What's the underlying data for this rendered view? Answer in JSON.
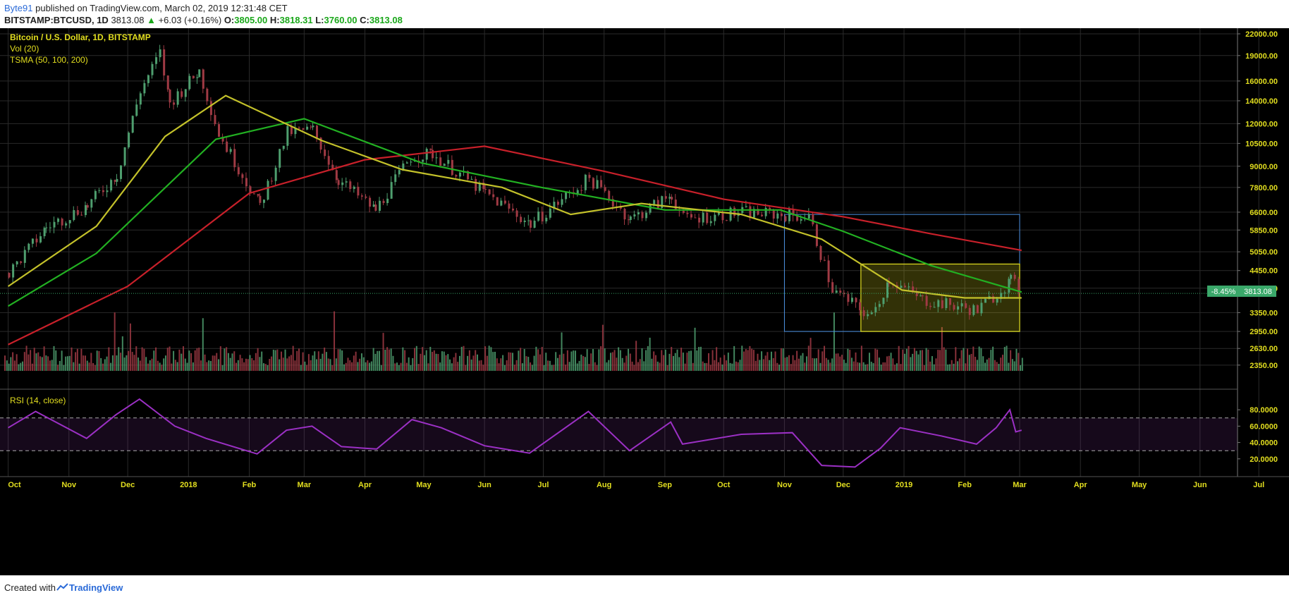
{
  "header": {
    "author": "Byte91",
    "published_text": "published on TradingView.com, March 02, 2019 12:31:48 CET",
    "symbol": "BITSTAMP:BTCUSD, 1D",
    "last": "3813.08",
    "change": "+6.03 (+0.16%)",
    "o_label": "O:",
    "o_val": "3805.00",
    "h_label": "H:",
    "h_val": "3818.31",
    "l_label": "L:",
    "l_val": "3760.00",
    "c_label": "C:",
    "c_val": "3813.08"
  },
  "legend": {
    "title": "Bitcoin / U.S. Dollar, 1D, BITSTAMP",
    "vol": "Vol (20)",
    "tsma": "TSMA (50, 100, 200)",
    "rsi": "RSI (14, close)"
  },
  "price_badge": {
    "pct": "-8.45%",
    "price": "3813.08"
  },
  "footer": {
    "created": "Created with",
    "brand": "TradingView"
  },
  "colors": {
    "bg": "#000000",
    "up": "#4e9e6e",
    "down": "#a03a44",
    "sma50": "#c3c12a",
    "sma100": "#22b022",
    "sma200": "#c8202a",
    "rsi": "#9b30c4",
    "box_blue": "#4a90e2",
    "box_yellow": "#e3df1f"
  },
  "chart_data": {
    "type": "line",
    "x_axis_labels": [
      "Oct",
      "Nov",
      "Dec",
      "2018",
      "Feb",
      "Mar",
      "Apr",
      "May",
      "Jun",
      "Jul",
      "Aug",
      "Sep",
      "Oct",
      "Nov",
      "Dec",
      "2019",
      "Feb",
      "Mar",
      "Apr",
      "May",
      "Jun",
      "Jul"
    ],
    "y_axis_labels": [
      "22000.00",
      "19000.00",
      "16000.00",
      "14000.00",
      "12000.00",
      "10500.00",
      "9000.00",
      "7800.00",
      "6600.00",
      "5850.00",
      "5050.00",
      "4450.00",
      "3950.00",
      "3350.00",
      "2950.00",
      "2630.00",
      "2350.00"
    ],
    "y_scale": "log",
    "price_close": [
      {
        "d": "2017-10-01",
        "v": 4380
      },
      {
        "d": "2017-10-20",
        "v": 5950
      },
      {
        "d": "2017-11-10",
        "v": 6900
      },
      {
        "d": "2017-11-25",
        "v": 8500
      },
      {
        "d": "2017-12-07",
        "v": 15000
      },
      {
        "d": "2017-12-17",
        "v": 19300
      },
      {
        "d": "2017-12-22",
        "v": 13800
      },
      {
        "d": "2018-01-06",
        "v": 17100
      },
      {
        "d": "2018-01-16",
        "v": 11200
      },
      {
        "d": "2018-02-06",
        "v": 6900
      },
      {
        "d": "2018-02-20",
        "v": 11300
      },
      {
        "d": "2018-03-05",
        "v": 11500
      },
      {
        "d": "2018-03-18",
        "v": 8200
      },
      {
        "d": "2018-04-06",
        "v": 6700
      },
      {
        "d": "2018-04-24",
        "v": 9600
      },
      {
        "d": "2018-05-05",
        "v": 9800
      },
      {
        "d": "2018-06-01",
        "v": 7500
      },
      {
        "d": "2018-06-24",
        "v": 6100
      },
      {
        "d": "2018-07-24",
        "v": 8300
      },
      {
        "d": "2018-08-14",
        "v": 6300
      },
      {
        "d": "2018-09-04",
        "v": 7400
      },
      {
        "d": "2018-09-10",
        "v": 6300
      },
      {
        "d": "2018-10-10",
        "v": 6600
      },
      {
        "d": "2018-11-13",
        "v": 6400
      },
      {
        "d": "2018-11-25",
        "v": 3900
      },
      {
        "d": "2018-12-15",
        "v": 3250
      },
      {
        "d": "2018-12-24",
        "v": 4200
      },
      {
        "d": "2019-01-10",
        "v": 3650
      },
      {
        "d": "2019-02-07",
        "v": 3400
      },
      {
        "d": "2019-02-24",
        "v": 4150
      },
      {
        "d": "2019-03-02",
        "v": 3813
      }
    ],
    "sma50": [
      {
        "d": "2017-10-01",
        "v": 4000
      },
      {
        "d": "2017-11-15",
        "v": 6000
      },
      {
        "d": "2017-12-20",
        "v": 11000
      },
      {
        "d": "2018-01-20",
        "v": 14500
      },
      {
        "d": "2018-03-10",
        "v": 10700
      },
      {
        "d": "2018-04-20",
        "v": 8800
      },
      {
        "d": "2018-06-10",
        "v": 7800
      },
      {
        "d": "2018-07-15",
        "v": 6500
      },
      {
        "d": "2018-08-20",
        "v": 7000
      },
      {
        "d": "2018-10-10",
        "v": 6500
      },
      {
        "d": "2018-11-20",
        "v": 5500
      },
      {
        "d": "2018-12-31",
        "v": 3900
      },
      {
        "d": "2019-02-01",
        "v": 3700
      },
      {
        "d": "2019-03-02",
        "v": 3700
      }
    ],
    "sma100": [
      {
        "d": "2017-10-01",
        "v": 3500
      },
      {
        "d": "2017-11-15",
        "v": 5000
      },
      {
        "d": "2018-01-15",
        "v": 10800
      },
      {
        "d": "2018-03-01",
        "v": 12400
      },
      {
        "d": "2018-04-30",
        "v": 9200
      },
      {
        "d": "2018-06-30",
        "v": 7800
      },
      {
        "d": "2018-09-01",
        "v": 6700
      },
      {
        "d": "2018-10-30",
        "v": 6700
      },
      {
        "d": "2018-12-01",
        "v": 5800
      },
      {
        "d": "2019-01-15",
        "v": 4600
      },
      {
        "d": "2019-03-02",
        "v": 3850
      }
    ],
    "sma200": [
      {
        "d": "2017-10-01",
        "v": 2700
      },
      {
        "d": "2017-12-01",
        "v": 4000
      },
      {
        "d": "2018-02-01",
        "v": 7500
      },
      {
        "d": "2018-04-01",
        "v": 9400
      },
      {
        "d": "2018-06-01",
        "v": 10300
      },
      {
        "d": "2018-08-01",
        "v": 8700
      },
      {
        "d": "2018-10-01",
        "v": 7200
      },
      {
        "d": "2018-12-01",
        "v": 6400
      },
      {
        "d": "2019-01-15",
        "v": 5700
      },
      {
        "d": "2019-03-02",
        "v": 5100
      }
    ],
    "rsi": {
      "levels": [
        "80.0000",
        "60.0000",
        "40.0000",
        "20.0000"
      ],
      "bands": [
        30,
        70
      ],
      "points": [
        {
          "d": "2017-10-01",
          "v": 58
        },
        {
          "d": "2017-10-15",
          "v": 78
        },
        {
          "d": "2017-11-10",
          "v": 45
        },
        {
          "d": "2017-11-25",
          "v": 74
        },
        {
          "d": "2017-12-07",
          "v": 93
        },
        {
          "d": "2017-12-25",
          "v": 60
        },
        {
          "d": "2018-01-10",
          "v": 45
        },
        {
          "d": "2018-02-05",
          "v": 26
        },
        {
          "d": "2018-02-20",
          "v": 55
        },
        {
          "d": "2018-03-05",
          "v": 60
        },
        {
          "d": "2018-03-20",
          "v": 35
        },
        {
          "d": "2018-04-07",
          "v": 32
        },
        {
          "d": "2018-04-25",
          "v": 68
        },
        {
          "d": "2018-05-10",
          "v": 58
        },
        {
          "d": "2018-06-01",
          "v": 36
        },
        {
          "d": "2018-06-24",
          "v": 27
        },
        {
          "d": "2018-07-24",
          "v": 78
        },
        {
          "d": "2018-08-14",
          "v": 30
        },
        {
          "d": "2018-09-04",
          "v": 65
        },
        {
          "d": "2018-09-10",
          "v": 38
        },
        {
          "d": "2018-10-10",
          "v": 50
        },
        {
          "d": "2018-11-05",
          "v": 52
        },
        {
          "d": "2018-11-20",
          "v": 12
        },
        {
          "d": "2018-12-07",
          "v": 10
        },
        {
          "d": "2018-12-20",
          "v": 33
        },
        {
          "d": "2018-12-30",
          "v": 58
        },
        {
          "d": "2019-01-20",
          "v": 48
        },
        {
          "d": "2019-02-07",
          "v": 38
        },
        {
          "d": "2019-02-17",
          "v": 58
        },
        {
          "d": "2019-02-24",
          "v": 80
        },
        {
          "d": "2019-02-27",
          "v": 53
        },
        {
          "d": "2019-03-02",
          "v": 55
        }
      ]
    },
    "boxes": [
      {
        "color": "blue",
        "from": "2018-11-01",
        "to": "2019-03-01",
        "top": 6500,
        "bottom": 2950
      },
      {
        "color": "yellow",
        "from": "2018-12-10",
        "to": "2019-03-01",
        "top": 4650,
        "bottom": 2950
      }
    ]
  }
}
